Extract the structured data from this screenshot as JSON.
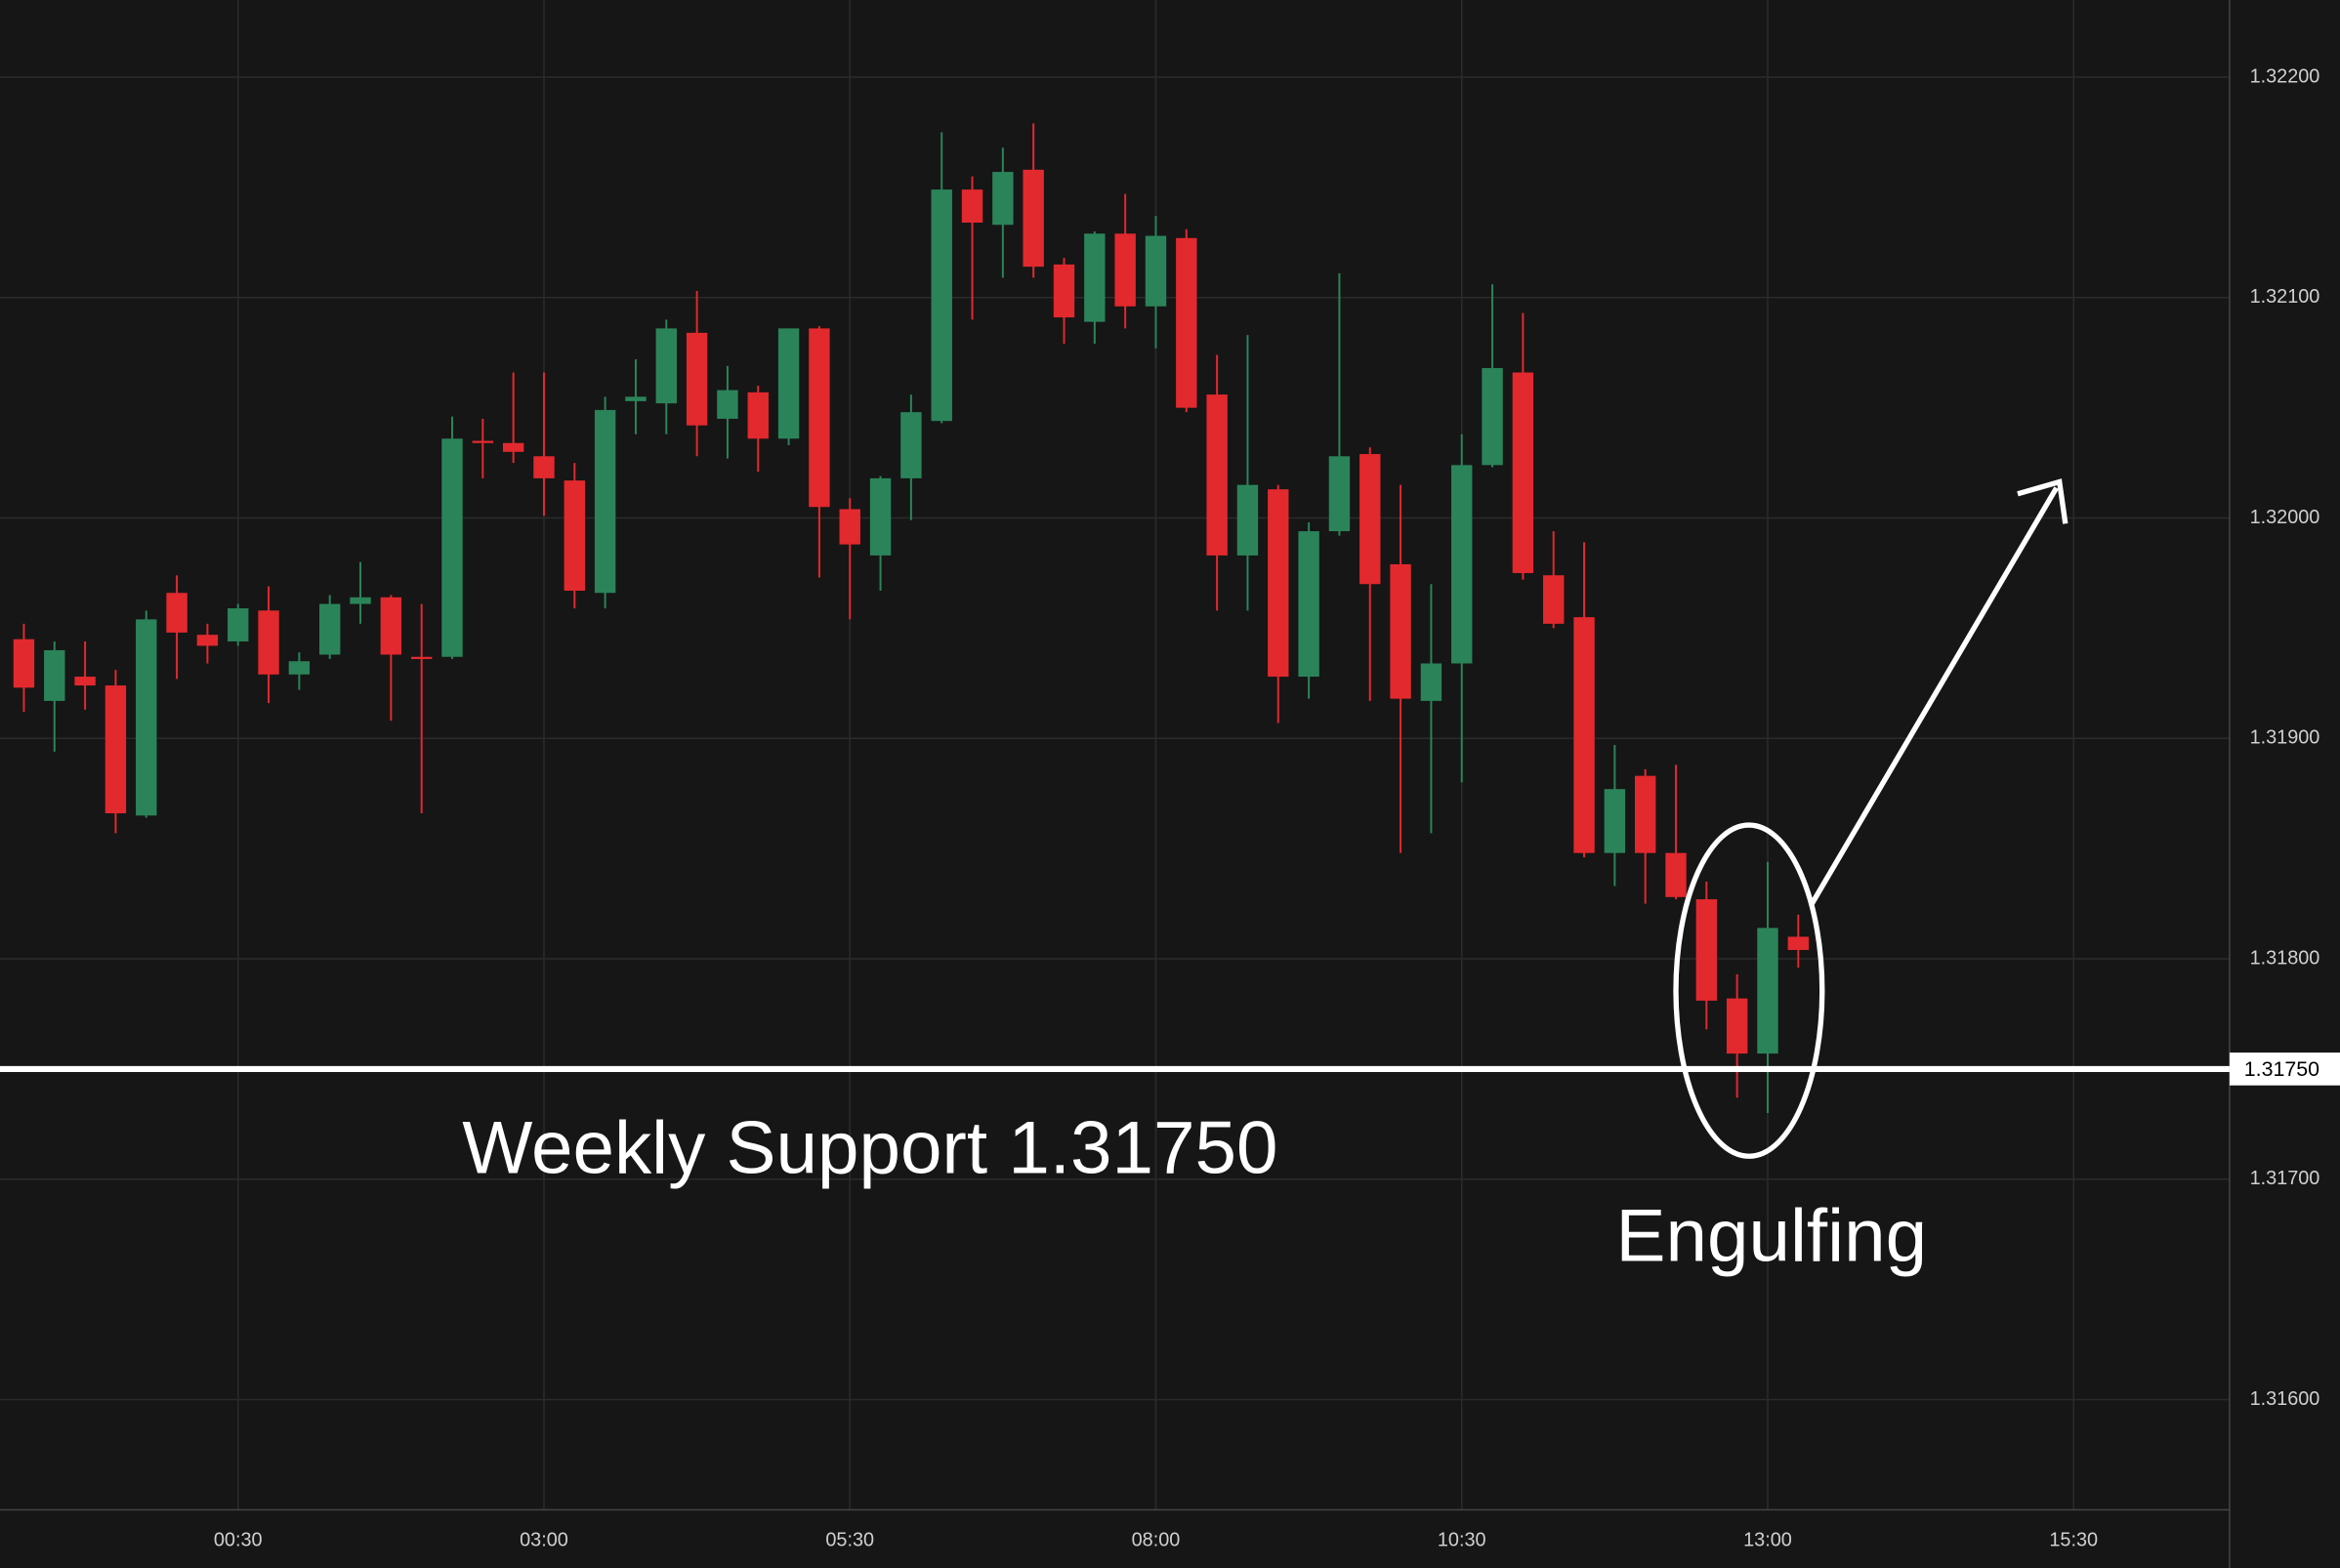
{
  "chart_data": {
    "type": "candlestick",
    "categories": [
      null,
      null,
      null,
      null,
      null,
      null,
      null,
      "00:30",
      null,
      null,
      null,
      null,
      null,
      null,
      null,
      null,
      null,
      "03:00",
      null,
      null,
      null,
      null,
      null,
      null,
      null,
      null,
      null,
      "05:30",
      null,
      null,
      null,
      null,
      null,
      null,
      null,
      null,
      null,
      "08:00",
      null,
      null,
      null,
      null,
      null,
      null,
      null,
      null,
      null,
      "10:30",
      null,
      null,
      null,
      null,
      null,
      null,
      null,
      null,
      null,
      "13:00",
      null,
      null,
      null,
      null,
      null,
      null,
      null,
      null,
      null,
      "15:30"
    ],
    "open": [
      1.31945,
      1.31917,
      1.31928,
      1.31924,
      1.31865,
      1.31966,
      1.31947,
      1.31944,
      1.31958,
      1.31929,
      1.31938,
      1.31961,
      1.31964,
      1.31937,
      1.31937,
      1.32035,
      1.32034,
      1.32028,
      1.32017,
      1.31966,
      1.32053,
      1.32052,
      1.32084,
      1.32045,
      1.32057,
      1.32036,
      1.32086,
      1.32004,
      1.31983,
      1.32018,
      1.32044,
      1.32149,
      1.32133,
      1.32158,
      1.32115,
      1.32089,
      1.32129,
      1.32096,
      1.32127,
      1.32056,
      1.31983,
      1.32013,
      1.31928,
      1.31994,
      1.32029,
      1.31979,
      1.31917,
      1.31934,
      1.32024,
      1.32066,
      1.31974,
      1.31955,
      1.31848,
      1.31883,
      1.31848,
      1.31827,
      1.31782,
      1.31757,
      1.3181,
      null,
      null,
      null,
      null,
      null,
      null,
      null,
      null,
      null
    ],
    "high": [
      1.31952,
      1.31944,
      1.31944,
      1.31931,
      1.31958,
      1.31974,
      1.31952,
      1.31961,
      1.31969,
      1.31939,
      1.31965,
      1.3198,
      1.31965,
      1.31961,
      1.32046,
      1.32045,
      1.32066,
      1.32066,
      1.32025,
      1.32055,
      1.32072,
      1.3209,
      1.32103,
      1.32069,
      1.3206,
      1.32086,
      1.32087,
      1.32009,
      1.32019,
      1.32056,
      1.32175,
      1.32155,
      1.32168,
      1.32179,
      1.32118,
      1.3213,
      1.32147,
      1.32137,
      1.32131,
      1.32074,
      1.32083,
      1.32015,
      1.31998,
      1.32111,
      1.32032,
      1.32015,
      1.3197,
      1.32038,
      1.32106,
      1.32093,
      1.31994,
      1.31989,
      1.31897,
      1.31886,
      1.31888,
      1.31835,
      1.31793,
      1.31844,
      1.3182,
      null,
      null,
      null,
      null,
      null,
      null,
      null,
      null,
      null
    ],
    "low": [
      1.31912,
      1.31894,
      1.31913,
      1.31857,
      1.31864,
      1.31927,
      1.31934,
      1.31942,
      1.31916,
      1.31922,
      1.31936,
      1.31952,
      1.31908,
      1.31866,
      1.31936,
      1.32018,
      1.32025,
      1.32001,
      1.31959,
      1.31959,
      1.32038,
      1.32038,
      1.32028,
      1.32027,
      1.32021,
      1.32033,
      1.31973,
      1.31954,
      1.31967,
      1.31999,
      1.32043,
      1.3209,
      1.32109,
      1.32109,
      1.32079,
      1.32079,
      1.32086,
      1.32077,
      1.32048,
      1.31958,
      1.31958,
      1.31907,
      1.31918,
      1.31992,
      1.31917,
      1.31848,
      1.31857,
      1.3188,
      1.32023,
      1.31972,
      1.3195,
      1.31846,
      1.31833,
      1.31825,
      1.31827,
      1.31768,
      1.31737,
      1.3173,
      1.31796,
      null,
      null,
      null,
      null,
      null,
      null,
      null,
      null,
      null
    ],
    "close": [
      1.31923,
      1.3194,
      1.31924,
      1.31866,
      1.31954,
      1.31948,
      1.31942,
      1.31959,
      1.31929,
      1.31935,
      1.31961,
      1.31964,
      1.31938,
      1.31936,
      1.32036,
      1.32034,
      1.3203,
      1.32018,
      1.31967,
      1.32049,
      1.32055,
      1.32086,
      1.32042,
      1.32058,
      1.32036,
      1.32086,
      1.32005,
      1.31988,
      1.32018,
      1.32048,
      1.32149,
      1.32134,
      1.32157,
      1.32114,
      1.32091,
      1.32129,
      1.32096,
      1.32128,
      1.3205,
      1.31983,
      1.32015,
      1.31928,
      1.31994,
      1.32028,
      1.3197,
      1.31918,
      1.31934,
      1.32024,
      1.32068,
      1.31975,
      1.31952,
      1.31848,
      1.31877,
      1.31848,
      1.31828,
      1.31781,
      1.31757,
      1.31814,
      1.31804,
      null,
      null,
      null,
      null,
      null,
      null,
      null,
      null,
      null
    ],
    "up_color": "#2b8459",
    "down_color": "#e2292e",
    "ylim": [
      1.3155,
      1.32235
    ],
    "yticks": [
      {
        "value": 1.316,
        "label": "1.31600"
      },
      {
        "value": 1.317,
        "label": "1.31700"
      },
      {
        "value": 1.318,
        "label": "1.31800"
      },
      {
        "value": 1.319,
        "label": "1.31900"
      },
      {
        "value": 1.32,
        "label": "1.32000"
      },
      {
        "value": 1.321,
        "label": "1.32100"
      },
      {
        "value": 1.322,
        "label": "1.32200"
      }
    ],
    "grid": true,
    "hlines": [
      {
        "value": 1.3175,
        "label": "1.31750"
      }
    ],
    "annotations": [
      "Weekly Support 1.31750",
      "Engulfing"
    ]
  }
}
